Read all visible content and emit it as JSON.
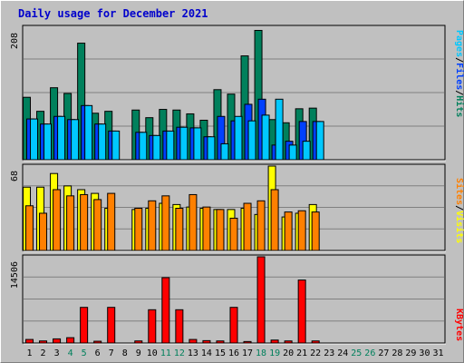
{
  "title": "Daily usage for December 2021",
  "colors": {
    "hits": "#00805c",
    "files": "#0040ff",
    "pages": "#00c8ff",
    "visits": "#ffff00",
    "sites": "#ff8000",
    "kbytes": "#ff0000",
    "weekend_day": "#00805c",
    "weekday": "#000000"
  },
  "chart_data": [
    {
      "type": "bar",
      "panel": "hits-files-pages",
      "ymax_label": "208",
      "ymax": 208,
      "legend": [
        {
          "label": "Pages",
          "color": "#00c8ff"
        },
        {
          "label": "/",
          "color": "#000000"
        },
        {
          "label": "Files",
          "color": "#0040ff"
        },
        {
          "label": "/",
          "color": "#000000"
        },
        {
          "label": "Hits",
          "color": "#00805c"
        }
      ],
      "categories": [
        "1",
        "2",
        "3",
        "4",
        "5",
        "6",
        "7",
        "8",
        "9",
        "10",
        "11",
        "12",
        "13",
        "14",
        "15",
        "16",
        "17",
        "18",
        "19",
        "20",
        "21",
        "22",
        "23",
        "24",
        "25",
        "26",
        "27",
        "28",
        "29",
        "30",
        "31"
      ],
      "series": [
        {
          "name": "Hits",
          "values": [
            98,
            76,
            113,
            104,
            183,
            73,
            76,
            null,
            78,
            66,
            79,
            78,
            72,
            62,
            110,
            103,
            163,
            203,
            63,
            58,
            80,
            81,
            0,
            0,
            0,
            0,
            0,
            0,
            0,
            0,
            0
          ]
        },
        {
          "name": "Files",
          "values": [
            64,
            56,
            68,
            63,
            85,
            56,
            45,
            null,
            43,
            38,
            45,
            51,
            50,
            36,
            68,
            61,
            87,
            95,
            23,
            29,
            60,
            60,
            0,
            0,
            0,
            0,
            0,
            0,
            0,
            0,
            0
          ]
        },
        {
          "name": "Pages",
          "values": [
            64,
            56,
            68,
            63,
            85,
            56,
            45,
            null,
            43,
            38,
            45,
            51,
            50,
            36,
            25,
            68,
            61,
            70,
            95,
            23,
            29,
            60,
            0,
            0,
            0,
            0,
            0,
            0,
            0,
            0,
            0
          ]
        }
      ]
    },
    {
      "type": "bar",
      "panel": "visits-sites",
      "ymax_label": "68",
      "ymax": 68,
      "legend": [
        {
          "label": "Sites",
          "color": "#ff8000"
        },
        {
          "label": "/",
          "color": "#000000"
        },
        {
          "label": "Visits",
          "color": "#ffff00"
        }
      ],
      "categories": [
        "1",
        "2",
        "3",
        "4",
        "5",
        "6",
        "7",
        "8",
        "9",
        "10",
        "11",
        "12",
        "13",
        "14",
        "15",
        "16",
        "17",
        "18",
        "19",
        "20",
        "21",
        "22",
        "23",
        "24",
        "25",
        "26",
        "27",
        "28",
        "29",
        "30",
        "31"
      ],
      "series": [
        {
          "name": "Visits",
          "values": [
            51,
            51,
            62,
            52,
            49,
            46,
            34,
            null,
            33,
            34,
            38,
            37,
            35,
            34,
            33,
            33,
            34,
            29,
            68,
            27,
            30,
            37,
            0,
            0,
            0,
            0,
            0,
            0,
            0,
            0,
            0
          ]
        },
        {
          "name": "Sites",
          "values": [
            36,
            30,
            49,
            44,
            45,
            41,
            46,
            null,
            34,
            40,
            44,
            34,
            45,
            35,
            33,
            26,
            38,
            40,
            49,
            31,
            32,
            31,
            0,
            0,
            0,
            0,
            0,
            0,
            0,
            0,
            0
          ]
        }
      ]
    },
    {
      "type": "bar",
      "panel": "kbytes",
      "ymax_label": "14506",
      "ymax": 14506,
      "legend": [
        {
          "label": "KBytes",
          "color": "#ff0000"
        }
      ],
      "categories": [
        "1",
        "2",
        "3",
        "4",
        "5",
        "6",
        "7",
        "8",
        "9",
        "10",
        "11",
        "12",
        "13",
        "14",
        "15",
        "16",
        "17",
        "18",
        "19",
        "20",
        "21",
        "22",
        "23",
        "24",
        "25",
        "26",
        "27",
        "28",
        "29",
        "30",
        "31"
      ],
      "series": [
        {
          "name": "KBytes",
          "values": [
            600,
            350,
            700,
            900,
            6000,
            300,
            6000,
            null,
            350,
            5600,
            11000,
            5600,
            600,
            400,
            350,
            6000,
            250,
            14506,
            500,
            350,
            10600,
            350,
            0,
            0,
            0,
            0,
            0,
            0,
            0,
            0,
            0
          ]
        }
      ]
    }
  ],
  "x_axis": {
    "days": [
      "1",
      "2",
      "3",
      "4",
      "5",
      "6",
      "7",
      "8",
      "9",
      "10",
      "11",
      "12",
      "13",
      "14",
      "15",
      "16",
      "17",
      "18",
      "19",
      "20",
      "21",
      "22",
      "23",
      "24",
      "25",
      "26",
      "27",
      "28",
      "29",
      "30",
      "31"
    ],
    "weekend_days": [
      "4",
      "5",
      "11",
      "12",
      "18",
      "19",
      "25",
      "26"
    ]
  }
}
